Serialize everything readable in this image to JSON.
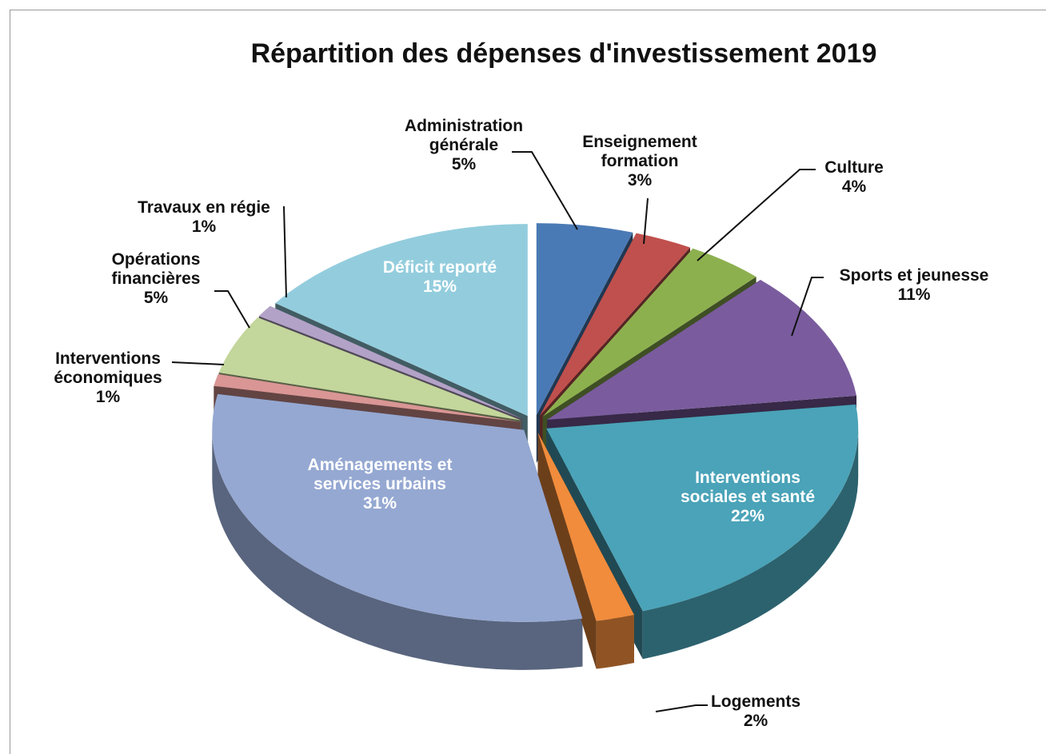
{
  "chart_data": {
    "type": "pie",
    "title": "Répartition des dépenses d'investissement  2019",
    "categories": [
      "Administration générale",
      "Enseignement formation",
      "Culture",
      "Sports et jeunesse",
      "Interventions sociales et santé",
      "Logements",
      "Aménagements et services urbains",
      "Interventions économiques",
      "Opérations financières",
      "Travaux en  régie",
      "Déficit reporté"
    ],
    "values": [
      5,
      3,
      4,
      11,
      22,
      2,
      31,
      1,
      5,
      1,
      15
    ],
    "value_labels": [
      "5%",
      "3%",
      "4%",
      "11%",
      "22%",
      "2%",
      "31%",
      "1%",
      "5%",
      "1%",
      "15%"
    ],
    "colors": [
      "#4a7ab5",
      "#c0504d",
      "#8db04f",
      "#7a5c9e",
      "#4aa3b8",
      "#f08c3c",
      "#95a8d2",
      "#d99694",
      "#c3d69b",
      "#b3a2c7",
      "#93cddd"
    ]
  }
}
